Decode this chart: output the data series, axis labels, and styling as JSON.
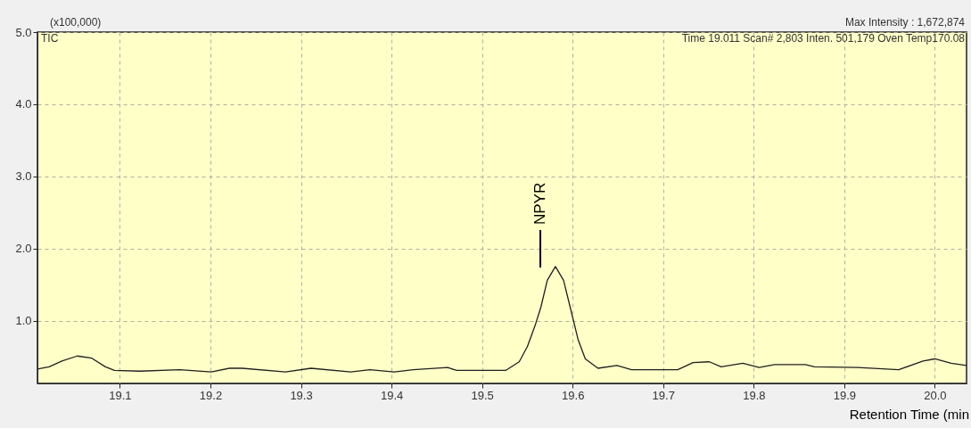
{
  "chart_data": {
    "type": "line",
    "xlabel": "Retention Time (min",
    "xlim": [
      19.009,
      20.035
    ],
    "ylim": [
      0.13,
      5.0
    ],
    "xticks": [
      19.1,
      19.2,
      19.3,
      19.4,
      19.5,
      19.6,
      19.7,
      19.8,
      19.9,
      {
        "value": 20,
        "label": "20.0"
      }
    ],
    "yticks": [
      {
        "value": 1,
        "label": "1.0"
      },
      {
        "value": 2,
        "label": "2.0"
      },
      {
        "value": 3,
        "label": "3.0"
      },
      {
        "value": 4,
        "label": "4.0"
      },
      {
        "value": 5,
        "label": "5.0"
      }
    ],
    "grid": true,
    "marker": "none",
    "line_style": "solid",
    "annotations": [
      "(x100,000)",
      "TIC",
      "Time  19.011    Scan#  2,803    Inten.           501,179    Oven Temp170.08",
      "Max Intensity : 1,672,874",
      "NPYR"
    ],
    "series": [
      {
        "color": "#202020",
        "x": [
          19.009,
          19.022,
          19.036,
          19.053,
          19.069,
          19.084,
          19.094,
          19.122,
          19.166,
          19.201,
          19.221,
          19.235,
          19.283,
          19.311,
          19.355,
          19.376,
          19.403,
          19.424,
          19.462,
          19.472,
          19.526,
          19.541,
          19.55,
          19.559,
          19.565,
          19.572,
          19.581,
          19.59,
          19.598,
          19.606,
          19.614,
          19.628,
          19.649,
          19.665,
          19.716,
          19.733,
          19.751,
          19.764,
          19.788,
          19.806,
          19.823,
          19.857,
          19.867,
          19.915,
          19.96,
          19.987,
          20.0,
          20.018,
          20.035
        ],
        "values": [
          0.33,
          0.36,
          0.44,
          0.51,
          0.48,
          0.36,
          0.31,
          0.3,
          0.32,
          0.29,
          0.34,
          0.34,
          0.29,
          0.34,
          0.29,
          0.32,
          0.29,
          0.32,
          0.35,
          0.31,
          0.31,
          0.43,
          0.64,
          0.95,
          1.19,
          1.56,
          1.75,
          1.56,
          1.15,
          0.74,
          0.47,
          0.34,
          0.38,
          0.32,
          0.32,
          0.42,
          0.43,
          0.36,
          0.41,
          0.35,
          0.39,
          0.39,
          0.36,
          0.35,
          0.32,
          0.44,
          0.47,
          0.41,
          0.38
        ]
      }
    ]
  }
}
